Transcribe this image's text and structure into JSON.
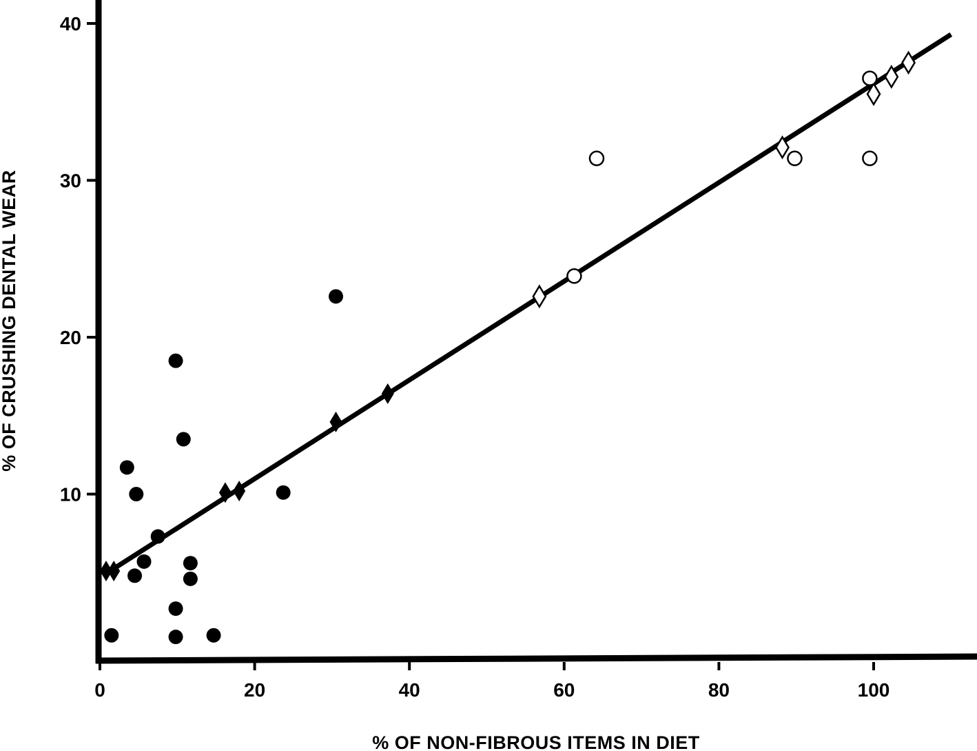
{
  "chart_data": {
    "type": "scatter",
    "title": "",
    "xlabel": "% OF NON-FIBROUS ITEMS IN DIET",
    "ylabel": "% OF CRUSHING DENTAL WEAR",
    "xlim": [
      0,
      112
    ],
    "ylim": [
      0,
      41
    ],
    "x_ticks": [
      0,
      20,
      40,
      60,
      80,
      100
    ],
    "x_tick_labels": [
      "0",
      "20",
      "40",
      "60",
      "80",
      "100"
    ],
    "y_ticks": [
      10,
      20,
      30,
      40
    ],
    "y_tick_labels": [
      "10",
      "20",
      "30",
      "40"
    ],
    "grid": false,
    "legend": "none",
    "series": [
      {
        "marker": "filled-circle",
        "color": "#000000",
        "points": [
          [
            1.5,
            1.0
          ],
          [
            3.5,
            11.7
          ],
          [
            4.5,
            4.8
          ],
          [
            4.7,
            10.0
          ],
          [
            5.7,
            5.7
          ],
          [
            7.5,
            7.3
          ],
          [
            9.8,
            18.5
          ],
          [
            9.8,
            2.7
          ],
          [
            9.8,
            0.9
          ],
          [
            10.8,
            13.5
          ],
          [
            11.7,
            5.6
          ],
          [
            11.7,
            4.6
          ],
          [
            14.7,
            1.0
          ],
          [
            23.7,
            10.1
          ],
          [
            30.5,
            22.6
          ]
        ]
      },
      {
        "marker": "filled-diamond",
        "color": "#000000",
        "points": [
          [
            0.8,
            5.1
          ],
          [
            1.8,
            5.1
          ],
          [
            16.2,
            10.1
          ],
          [
            18.0,
            10.2
          ],
          [
            30.5,
            14.6
          ],
          [
            37.2,
            16.4
          ]
        ]
      },
      {
        "marker": "open-diamond",
        "color": "#000000",
        "points": [
          [
            56.8,
            22.6
          ],
          [
            88.2,
            32.1
          ],
          [
            100.0,
            35.5
          ],
          [
            102.3,
            36.6
          ],
          [
            104.5,
            37.5
          ]
        ]
      },
      {
        "marker": "open-circle",
        "color": "#000000",
        "points": [
          [
            61.3,
            23.9
          ],
          [
            64.2,
            31.4
          ],
          [
            89.8,
            31.4
          ],
          [
            99.5,
            31.4
          ],
          [
            99.5,
            36.5
          ]
        ]
      }
    ],
    "regression_line": {
      "from": [
        1.0,
        5.0
      ],
      "to": [
        110.0,
        39.3
      ]
    }
  }
}
